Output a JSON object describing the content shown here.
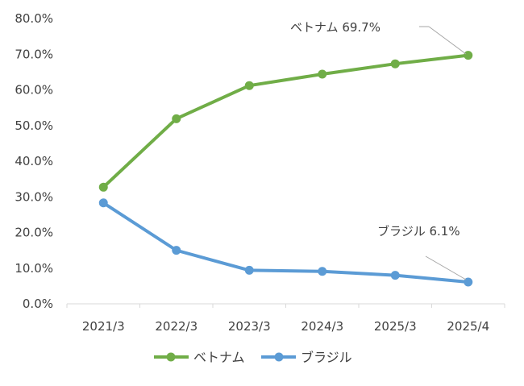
{
  "chart_data": {
    "type": "line",
    "categories": [
      "2021/3",
      "2022/3",
      "2023/3",
      "2024/3",
      "2025/3",
      "2025/4"
    ],
    "ylim": [
      0,
      80
    ],
    "yticks": [
      "0.0%",
      "10.0%",
      "20.0%",
      "30.0%",
      "40.0%",
      "50.0%",
      "60.0%",
      "70.0%",
      "80.0%"
    ],
    "grid": false,
    "legend_position": "bottom",
    "series": [
      {
        "name": "ベトナム",
        "color": "#70ad47",
        "values": [
          32.7,
          51.9,
          61.2,
          64.4,
          67.3,
          69.7
        ]
      },
      {
        "name": "ブラジル",
        "color": "#5b9bd5",
        "values": [
          28.3,
          15.0,
          9.4,
          9.1,
          8.0,
          6.1
        ]
      }
    ],
    "annotations": [
      "ベトナム 69.7%",
      "ブラジル 6.1%"
    ]
  }
}
